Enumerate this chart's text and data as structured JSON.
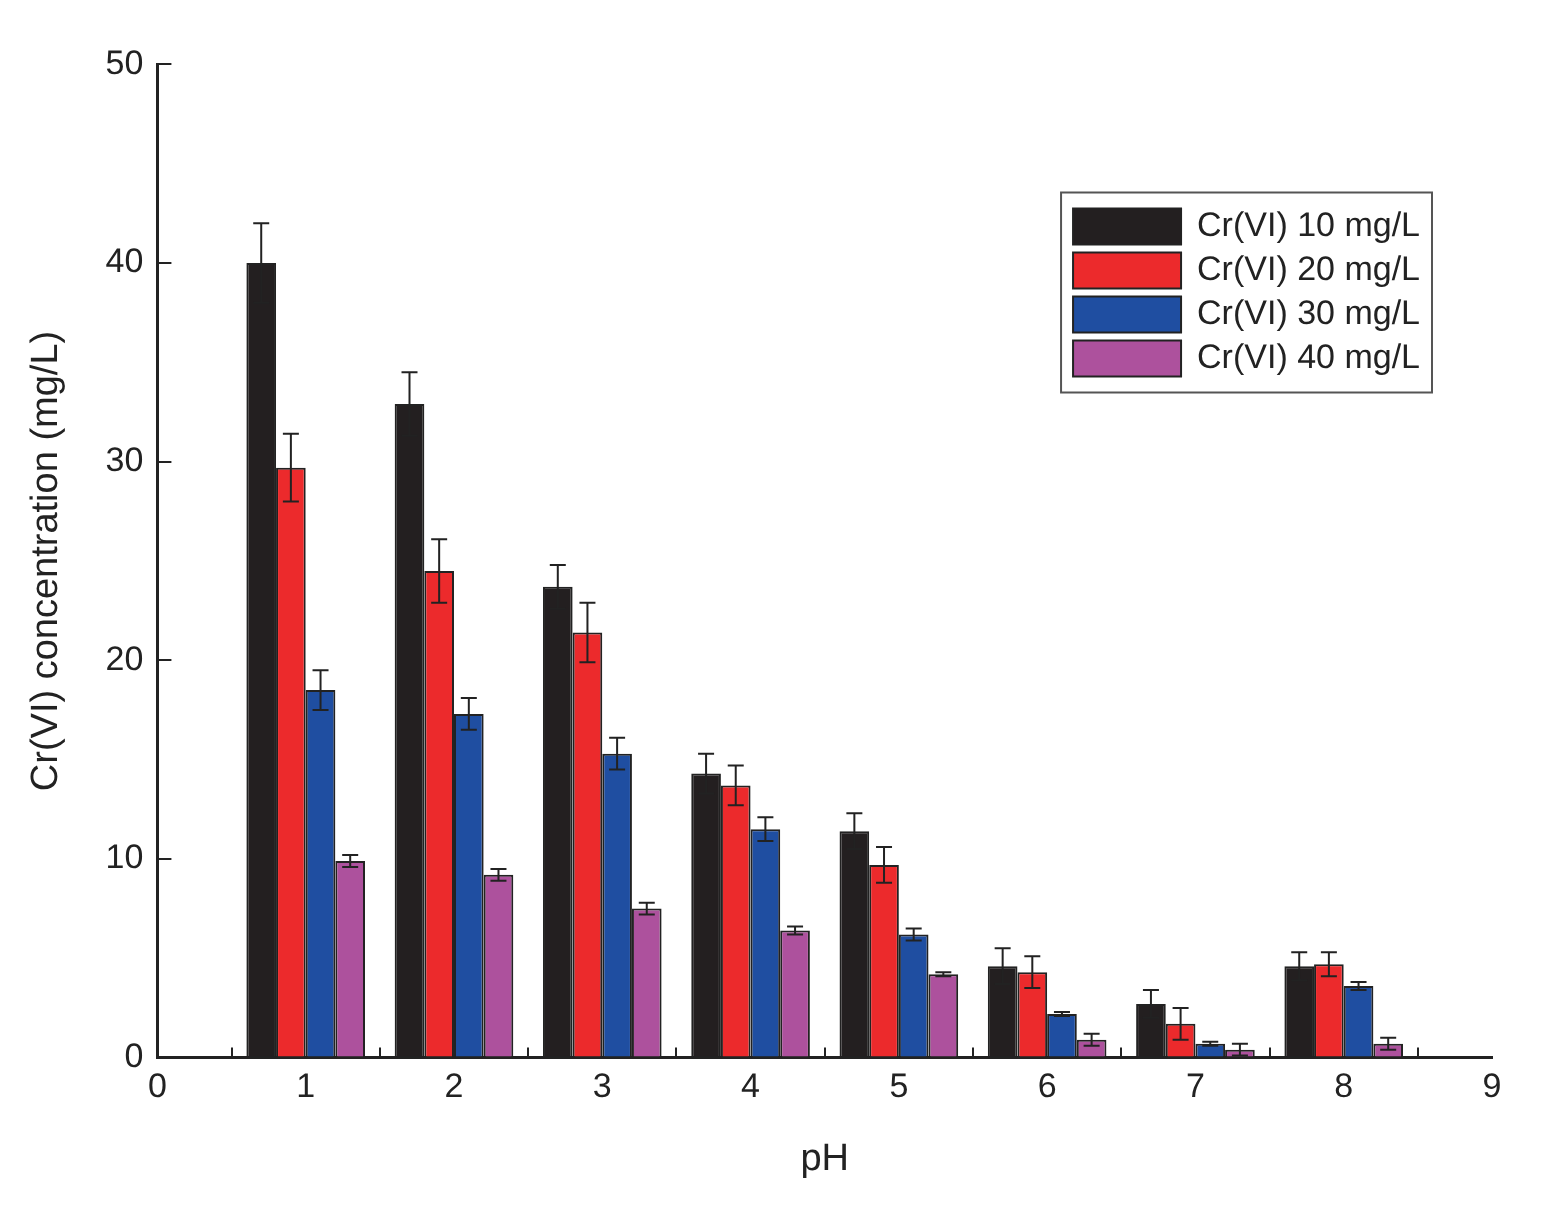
{
  "chart_data": {
    "type": "bar",
    "xlabel": "pH",
    "ylabel": "Cr(VI) concentration (mg/L)",
    "x": [
      1,
      2,
      3,
      4,
      5,
      6,
      7,
      8
    ],
    "xlim": [
      0,
      9
    ],
    "xticks": [
      0,
      1,
      2,
      3,
      4,
      5,
      6,
      7,
      8,
      9
    ],
    "ylim": [
      0,
      50
    ],
    "yticks": [
      0,
      10,
      20,
      30,
      40,
      50
    ],
    "grid": false,
    "legend": "top right",
    "series": [
      {
        "name": "Cr(VI) 10 mg/L",
        "color": "#231f20",
        "values": [
          40.0,
          32.9,
          23.7,
          14.3,
          11.4,
          4.6,
          2.7,
          4.6
        ],
        "errors": [
          2.0,
          1.6,
          1.1,
          1.0,
          0.9,
          0.9,
          0.7,
          0.7
        ]
      },
      {
        "name": "Cr(VI) 20 mg/L",
        "color": "#ec2a2c",
        "values": [
          29.7,
          24.5,
          21.4,
          13.7,
          9.7,
          4.3,
          1.7,
          4.7
        ],
        "errors": [
          1.7,
          1.6,
          1.5,
          1.0,
          0.9,
          0.8,
          0.8,
          0.6
        ]
      },
      {
        "name": "Cr(VI) 30 mg/L",
        "color": "#1f4ea1",
        "values": [
          18.5,
          17.3,
          15.3,
          11.5,
          6.2,
          2.2,
          0.7,
          3.6
        ],
        "errors": [
          1.0,
          0.8,
          0.8,
          0.6,
          0.3,
          0.1,
          0.1,
          0.2
        ]
      },
      {
        "name": "Cr(VI) 40 mg/L",
        "color": "#ad519d",
        "values": [
          9.9,
          9.2,
          7.5,
          6.4,
          4.2,
          0.9,
          0.4,
          0.7
        ],
        "errors": [
          0.3,
          0.3,
          0.3,
          0.2,
          0.1,
          0.3,
          0.3,
          0.3
        ]
      }
    ]
  }
}
